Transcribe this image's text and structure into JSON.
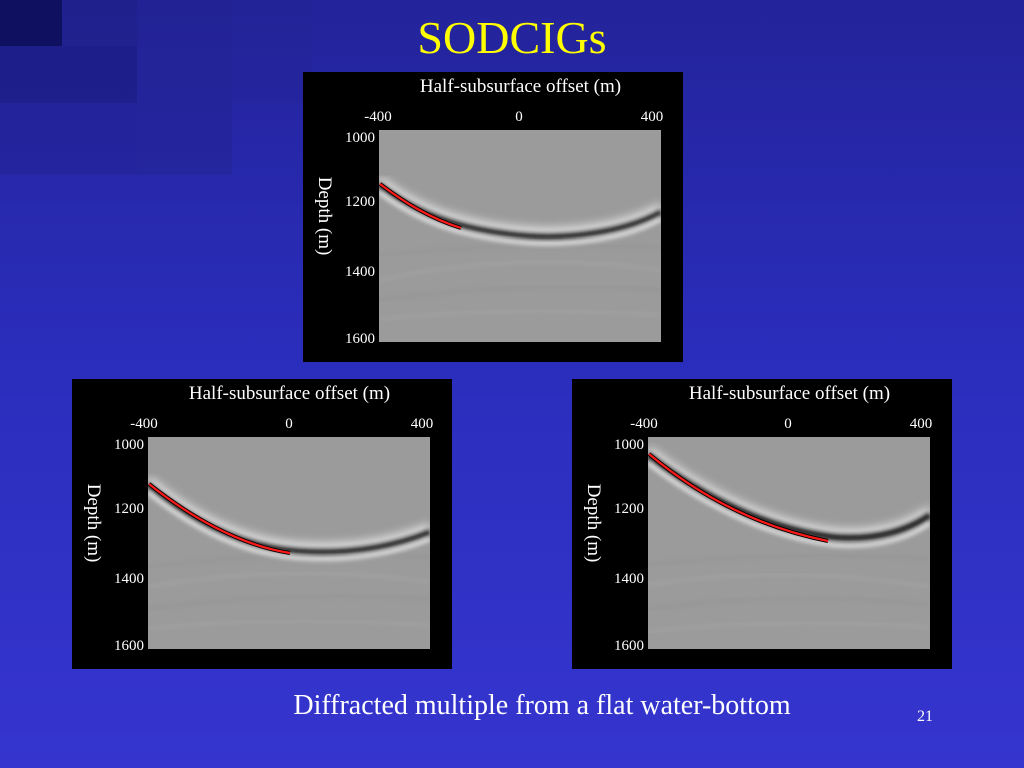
{
  "slide": {
    "title": "SODCIGs",
    "caption": "Diffracted multiple from a flat water-bottom",
    "page_number": "21"
  },
  "panels": [
    {
      "id": "top",
      "x_axis_label": "Half-subsurface offset (m)",
      "y_axis_label": "Depth (m)",
      "x_ticks": [
        "-400",
        "0",
        "400"
      ],
      "y_ticks": [
        "1000",
        "1200",
        "1400",
        "1600"
      ]
    },
    {
      "id": "bottom-left",
      "x_axis_label": "Half-subsurface offset (m)",
      "y_axis_label": "Depth (m)",
      "x_ticks": [
        "-400",
        "0",
        "400"
      ],
      "y_ticks": [
        "1000",
        "1200",
        "1400",
        "1600"
      ]
    },
    {
      "id": "bottom-right",
      "x_axis_label": "Half-subsurface offset (m)",
      "y_axis_label": "Depth (m)",
      "x_ticks": [
        "-400",
        "0",
        "400"
      ],
      "y_ticks": [
        "1000",
        "1200",
        "1400",
        "1600"
      ]
    }
  ],
  "colors": {
    "background": "#2a2dbb",
    "title": "#ffff00",
    "text": "#ffffff",
    "panel": "#000000",
    "image_gray": "#9b9b9b",
    "picked_event": "#ff0000"
  }
}
